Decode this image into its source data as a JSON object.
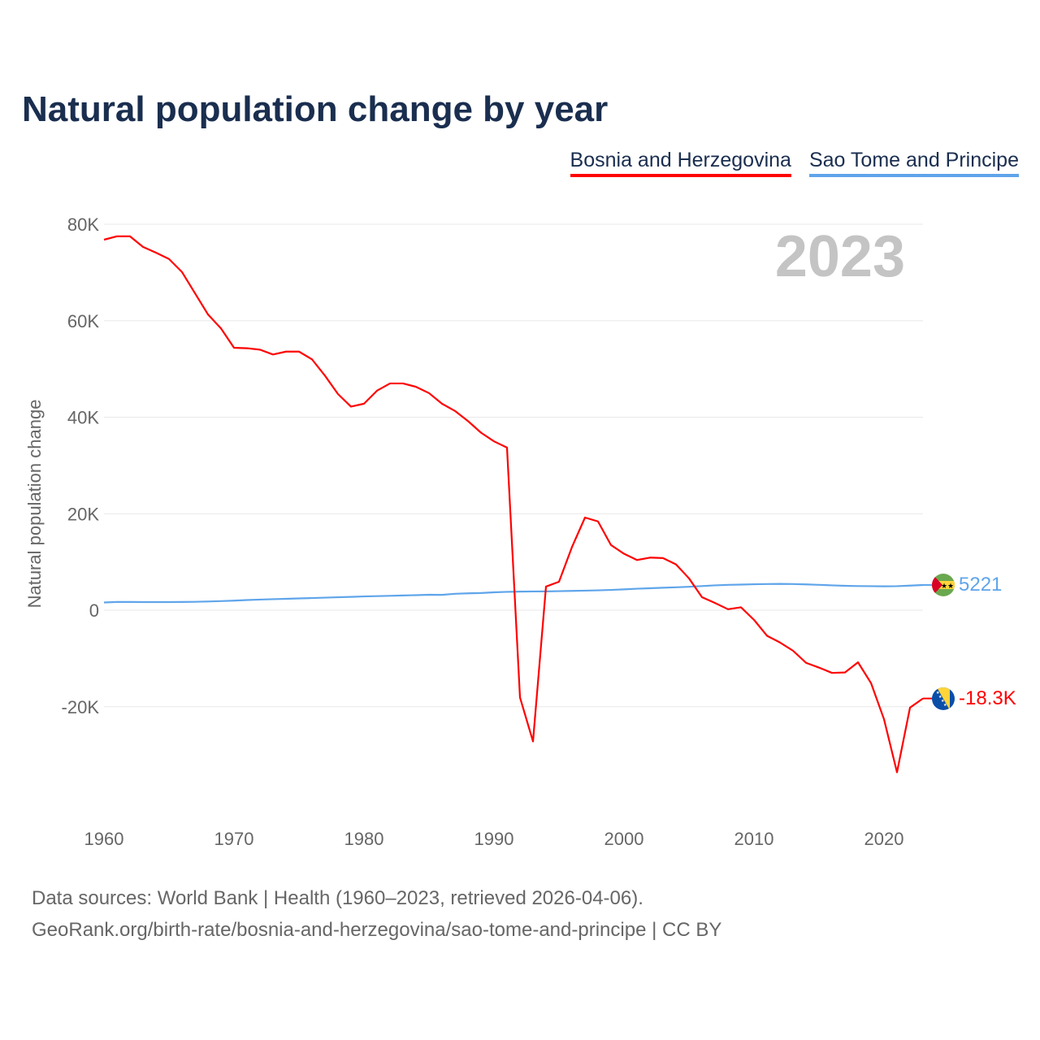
{
  "chart_data": {
    "type": "line",
    "title": "Natural population change by year",
    "xlabel": "",
    "ylabel": "Natural population change",
    "xlim": [
      1960,
      2023
    ],
    "ylim": [
      -40000,
      80000
    ],
    "x_ticks": [
      1960,
      1970,
      1980,
      1990,
      2000,
      2010,
      2020
    ],
    "x_tick_labels": [
      "1960",
      "1970",
      "1980",
      "1990",
      "2000",
      "2010",
      "2020"
    ],
    "y_ticks": [
      -20000,
      0,
      20000,
      40000,
      60000,
      80000
    ],
    "y_tick_labels": [
      "-20K",
      "0",
      "20K",
      "40K",
      "60K",
      "80K"
    ],
    "grid": true,
    "legend_position": "top-right",
    "year_watermark": "2023",
    "x": [
      1960,
      1961,
      1962,
      1963,
      1964,
      1965,
      1966,
      1967,
      1968,
      1969,
      1970,
      1971,
      1972,
      1973,
      1974,
      1975,
      1976,
      1977,
      1978,
      1979,
      1980,
      1981,
      1982,
      1983,
      1984,
      1985,
      1986,
      1987,
      1988,
      1989,
      1990,
      1991,
      1992,
      1993,
      1994,
      1995,
      1996,
      1997,
      1998,
      1999,
      2000,
      2001,
      2002,
      2003,
      2004,
      2005,
      2006,
      2007,
      2008,
      2009,
      2010,
      2011,
      2012,
      2013,
      2014,
      2015,
      2016,
      2017,
      2018,
      2019,
      2020,
      2021,
      2022,
      2023
    ],
    "series": [
      {
        "name": "Bosnia and Herzegovina",
        "color": "#ff0000",
        "end_label": "-18.3K",
        "values": [
          76800,
          77500,
          77500,
          75300,
          74100,
          72800,
          70100,
          65700,
          61300,
          58400,
          54400,
          54300,
          54000,
          53000,
          53600,
          53600,
          52000,
          48600,
          44800,
          42200,
          42800,
          45500,
          47000,
          47000,
          46300,
          45000,
          42800,
          41300,
          39200,
          36800,
          35000,
          33700,
          -18100,
          -27200,
          4900,
          5900,
          13100,
          19200,
          18400,
          13500,
          11700,
          10400,
          10900,
          10800,
          9500,
          6600,
          2700,
          1500,
          200,
          600,
          -2000,
          -5300,
          -6700,
          -8400,
          -10900,
          -11900,
          -13000,
          -12900,
          -10800,
          -15100,
          -22600,
          -33600,
          -20200,
          -18300
        ]
      },
      {
        "name": "Sao Tome and Principe",
        "color": "#5fa5ea",
        "end_label": "5221",
        "values": [
          1600,
          1700,
          1700,
          1680,
          1680,
          1680,
          1700,
          1740,
          1800,
          1880,
          1980,
          2100,
          2200,
          2280,
          2360,
          2440,
          2520,
          2600,
          2680,
          2760,
          2850,
          2920,
          2980,
          3050,
          3120,
          3200,
          3180,
          3400,
          3500,
          3560,
          3700,
          3800,
          3850,
          3880,
          3900,
          3950,
          4000,
          4050,
          4120,
          4200,
          4320,
          4450,
          4550,
          4650,
          4750,
          4850,
          5000,
          5150,
          5250,
          5300,
          5380,
          5420,
          5450,
          5420,
          5350,
          5250,
          5150,
          5050,
          5000,
          4980,
          4950,
          4980,
          5100,
          5221
        ]
      }
    ]
  },
  "footer": {
    "line1": "Data sources: World Bank | Health (1960–2023, retrieved 2026-04-06).",
    "line2": "GeoRank.org/birth-rate/bosnia-and-herzegovina/sao-tome-and-principe | CC BY"
  }
}
